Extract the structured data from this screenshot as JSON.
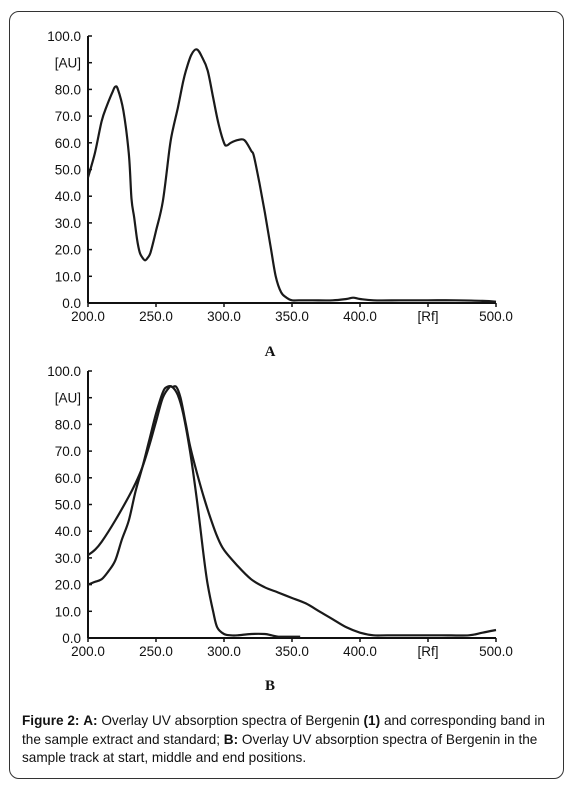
{
  "chart_data": [
    {
      "type": "line",
      "panel_label": "A",
      "title": "",
      "xlabel": "",
      "ylabel": "[AU]",
      "ylim": [
        0,
        100
      ],
      "xlim": [
        200,
        500
      ],
      "y_ticks": [
        "100.0",
        "[AU]",
        "80.0",
        "70.0",
        "60.0",
        "50.0",
        "40.0",
        "30.0",
        "20.0",
        "10.0",
        "0.0"
      ],
      "x_ticks": [
        "200.0",
        "250.0",
        "300.0",
        "350.0",
        "400.0",
        "[Rf]",
        "500.0"
      ],
      "grid": false,
      "series": [
        {
          "x": [
            200,
            205,
            210,
            214,
            218,
            220,
            222,
            226,
            230,
            232,
            234,
            236,
            238,
            240,
            242,
            244,
            246,
            250,
            255,
            260,
            262,
            266,
            270,
            272,
            276,
            280,
            284,
            288,
            292,
            296,
            300,
            302,
            305,
            310,
            315,
            320,
            322,
            326,
            330,
            334,
            338,
            342,
            346,
            350,
            355,
            365,
            380,
            390,
            395,
            400,
            410,
            430,
            450,
            470,
            490,
            500
          ],
          "y": [
            47,
            56,
            68,
            74,
            79,
            81,
            80,
            72,
            56,
            39,
            32,
            24,
            19,
            17,
            16,
            17,
            19,
            27,
            38,
            58,
            64,
            73,
            83,
            87,
            93,
            95,
            92,
            87,
            77,
            67,
            60,
            59,
            60,
            61,
            61,
            57,
            55,
            45,
            34,
            22,
            10,
            4,
            2,
            1,
            1,
            1,
            1,
            1.5,
            2,
            1.5,
            1,
            1,
            1,
            1,
            0.8,
            0.5
          ]
        }
      ]
    },
    {
      "type": "line",
      "panel_label": "B",
      "title": "",
      "xlabel": "",
      "ylabel": "[AU]",
      "ylim": [
        0,
        100
      ],
      "xlim": [
        200,
        500
      ],
      "y_ticks": [
        "100.0",
        "[AU]",
        "80.0",
        "70.0",
        "60.0",
        "50.0",
        "40.0",
        "30.0",
        "20.0",
        "10.0",
        "0.0"
      ],
      "x_ticks": [
        "200.0",
        "250.0",
        "300.0",
        "350.0",
        "400.0",
        "[Rf]",
        "500.0"
      ],
      "grid": false,
      "series": [
        {
          "x": [
            200,
            205,
            210,
            220,
            230,
            235,
            240,
            245,
            250,
            255,
            260,
            262,
            265,
            268,
            272,
            275,
            280,
            285,
            290,
            295,
            300,
            310,
            320,
            330,
            340,
            350,
            360,
            370,
            380,
            390,
            400,
            410,
            420,
            440,
            460,
            480,
            490,
            500
          ],
          "y": [
            31,
            33,
            36,
            44,
            53,
            58,
            64,
            72,
            81,
            90,
            94,
            94,
            94,
            90,
            80,
            72,
            62,
            53,
            45,
            38,
            33,
            27,
            22,
            19,
            17,
            15,
            13,
            10,
            7,
            4,
            2,
            1,
            1,
            1,
            1,
            1,
            2,
            3
          ]
        },
        {
          "x": [
            200,
            205,
            210,
            215,
            220,
            225,
            230,
            235,
            240,
            245,
            250,
            255,
            258,
            262,
            266,
            270,
            275,
            280,
            285,
            288,
            292,
            295,
            300,
            305,
            310,
            320,
            330,
            335,
            340,
            350,
            356
          ],
          "y": [
            20,
            21,
            22,
            25,
            29,
            37,
            44,
            55,
            64,
            74,
            84,
            92,
            94,
            94,
            91,
            84,
            70,
            52,
            31,
            20,
            10,
            4,
            1.5,
            1,
            1,
            1.5,
            1.5,
            1,
            0.5,
            0.5,
            0.5
          ]
        }
      ]
    }
  ],
  "caption": {
    "figure_label": "Figure 2:",
    "a_label": "A:",
    "a_text": "Overlay UV absorption spectra of Bergenin",
    "a_compound": "(1)",
    "a_text2": "and corresponding band in the sample extract and standard;",
    "b_label": "B:",
    "b_text": "Overlay UV absorption spectra of Bergenin in the sample track at start, middle and end positions."
  },
  "colors": {
    "line": "#1a1a1a",
    "axis": "#111111",
    "border": "#333333"
  }
}
